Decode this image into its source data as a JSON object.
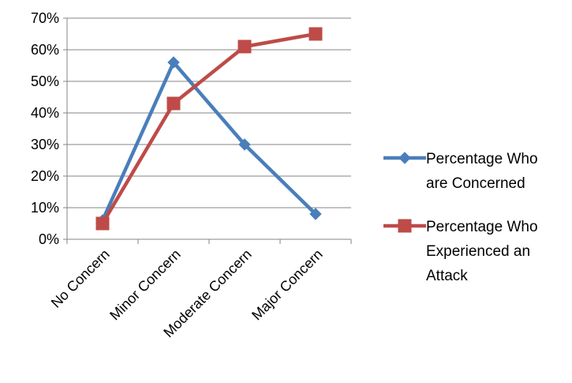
{
  "chart_data": {
    "type": "line",
    "categories": [
      "No Concern",
      "Minor Concern",
      "Moderate Concern",
      "Major Concern"
    ],
    "y_ticks": [
      "0%",
      "10%",
      "20%",
      "30%",
      "40%",
      "50%",
      "60%",
      "70%"
    ],
    "ylim": [
      0,
      70
    ],
    "y_unit": "%",
    "grid": true,
    "legend_position": "right",
    "series": [
      {
        "name": "Percentage Who are Concerned",
        "legend_lines": [
          "Percentage Who",
          "are Concerned"
        ],
        "values": [
          6,
          56,
          30,
          8
        ],
        "color": "#4a7ebb",
        "marker": "diamond"
      },
      {
        "name": "Percentage Who Experienced an Attack",
        "legend_lines": [
          "Percentage Who",
          "Experienced an",
          "Attack"
        ],
        "values": [
          5,
          43,
          61,
          65
        ],
        "color": "#be4b48",
        "marker": "square"
      }
    ]
  }
}
